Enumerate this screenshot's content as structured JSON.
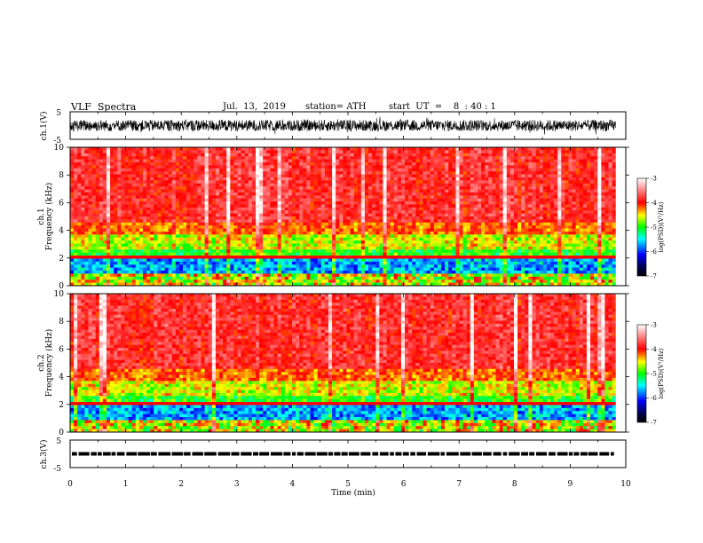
{
  "header": {
    "title": "VLF  Spectra",
    "date": "Jul.  13,  2019",
    "station": "station= ATH",
    "start_ut": "start  UT  =    8  : 40 : 1"
  },
  "chart_data": [
    {
      "type": "line",
      "panel": "ch1-waveform",
      "ylabel": "ch.1(V)",
      "yticks": [
        "5",
        "-5"
      ],
      "ylim": [
        -5,
        5
      ],
      "xlim": [
        0,
        10
      ],
      "x_extent": [
        0,
        9.82
      ],
      "color": "#000000",
      "description_values": "dense noisy waveform, amplitude about ±2.5 V"
    },
    {
      "type": "heatmap",
      "panel": "ch1-spectrogram",
      "ylabel_top": "ch.1",
      "ylabel": "Frequency  (kHz)",
      "yticks": [
        "0",
        "2",
        "4",
        "6",
        "8",
        "10"
      ],
      "ylim": [
        0,
        10
      ],
      "xlim": [
        0,
        10
      ],
      "x_extent": [
        0,
        9.82
      ],
      "colorbar": {
        "label": "log(PSD)(V²/Hz)",
        "ticks": [
          "-3",
          "-4",
          "-5",
          "-6",
          "-7"
        ],
        "range": [
          -7,
          -3
        ]
      }
    },
    {
      "type": "heatmap",
      "panel": "ch2-spectrogram",
      "ylabel_top": "ch.2",
      "ylabel": "Frequency  (kHz)",
      "yticks": [
        "0",
        "2",
        "4",
        "6",
        "8",
        "10"
      ],
      "ylim": [
        0,
        10
      ],
      "xlim": [
        0,
        10
      ],
      "x_extent": [
        0,
        9.82
      ],
      "colorbar": {
        "label": "log(PSD)(V²/Hz)",
        "ticks": [
          "-3",
          "-4",
          "-5",
          "-6",
          "-7"
        ],
        "range": [
          -7,
          -3
        ]
      }
    },
    {
      "type": "line",
      "panel": "ch3-waveform",
      "ylabel": "ch.3(V)",
      "yticks": [
        "5",
        "-5"
      ],
      "ylim": [
        -5,
        5
      ],
      "xlim": [
        0,
        10
      ],
      "x_extent": [
        0,
        9.82
      ],
      "level": 0,
      "color": "#000000"
    }
  ],
  "xaxis": {
    "label": "Time  (min)",
    "ticks": [
      "0",
      "1",
      "2",
      "3",
      "4",
      "5",
      "6",
      "7",
      "8",
      "9",
      "10"
    ]
  }
}
